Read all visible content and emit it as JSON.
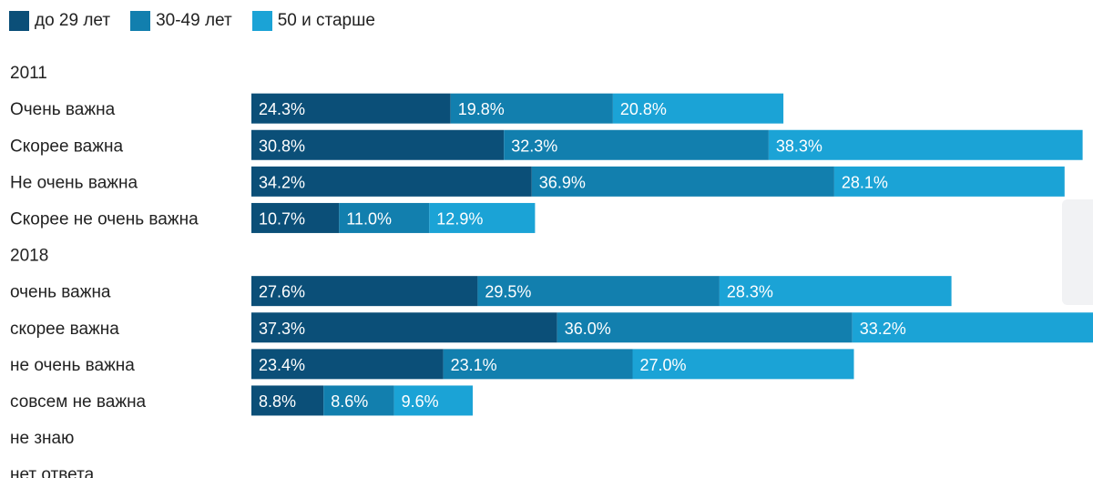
{
  "chart_data": {
    "type": "bar",
    "orientation": "horizontal",
    "stacked": true,
    "legend_position": "top-left",
    "grid": false,
    "series": [
      {
        "name": "до 29 лет",
        "color": "#0b4f78"
      },
      {
        "name": "30-49 лет",
        "color": "#127fae"
      },
      {
        "name": "50 и старше",
        "color": "#1ba3d6"
      }
    ],
    "rows": [
      {
        "kind": "group",
        "label": "2011"
      },
      {
        "kind": "bar",
        "label": "Очень важна",
        "values": [
          24.3,
          19.8,
          20.8
        ],
        "value_labels": [
          "24.3%",
          "19.8%",
          "20.8%"
        ]
      },
      {
        "kind": "bar",
        "label": "Скорее важна",
        "values": [
          30.8,
          32.3,
          38.3
        ],
        "value_labels": [
          "30.8%",
          "32.3%",
          "38.3%"
        ]
      },
      {
        "kind": "bar",
        "label": "Не очень важна",
        "values": [
          34.2,
          36.9,
          28.1
        ],
        "value_labels": [
          "34.2%",
          "36.9%",
          "28.1%"
        ]
      },
      {
        "kind": "bar",
        "label": "Скорее не очень важна",
        "values": [
          10.7,
          11.0,
          12.9
        ],
        "value_labels": [
          "10.7%",
          "11.0%",
          "12.9%"
        ]
      },
      {
        "kind": "group",
        "label": "2018"
      },
      {
        "kind": "bar",
        "label": "очень важна",
        "values": [
          27.6,
          29.5,
          28.3
        ],
        "value_labels": [
          "27.6%",
          "29.5%",
          "28.3%"
        ]
      },
      {
        "kind": "bar",
        "label": "скорее важна",
        "values": [
          37.3,
          36.0,
          33.2
        ],
        "value_labels": [
          "37.3%",
          "36.0%",
          "33.2%"
        ]
      },
      {
        "kind": "bar",
        "label": "не очень важна",
        "values": [
          23.4,
          23.1,
          27.0
        ],
        "value_labels": [
          "23.4%",
          "23.1%",
          "27.0%"
        ]
      },
      {
        "kind": "bar",
        "label": "совсем не важна",
        "values": [
          8.8,
          8.6,
          9.6
        ],
        "value_labels": [
          "8.8%",
          "8.6%",
          "9.6%"
        ]
      },
      {
        "kind": "bar",
        "label": "не знаю",
        "values": [],
        "value_labels": []
      },
      {
        "kind": "bar",
        "label": "нет ответа",
        "values": [],
        "value_labels": []
      }
    ]
  }
}
